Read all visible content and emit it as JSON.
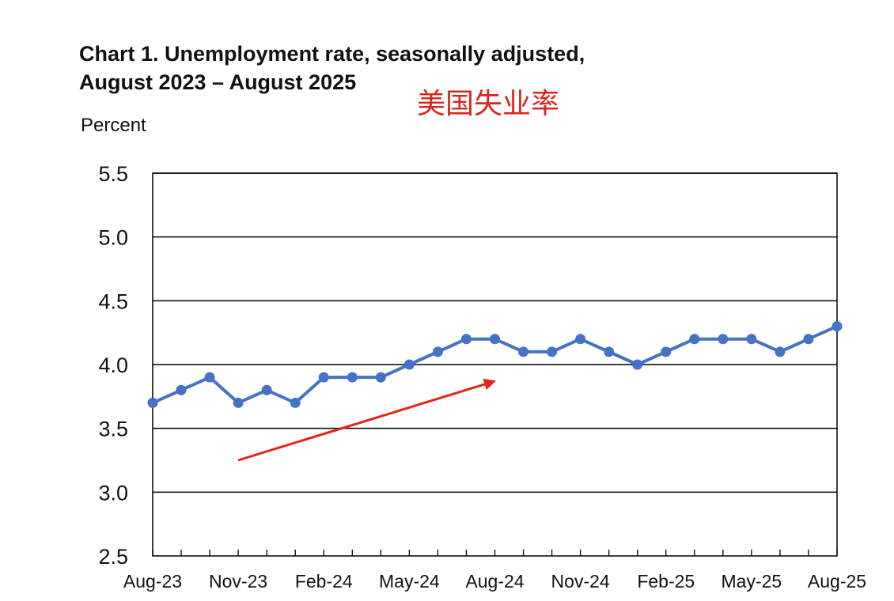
{
  "title_line1": "Chart 1. Unemployment rate, seasonally adjusted,",
  "title_line2": "August 2023 – August 2025",
  "annotation_text": "美国失业率",
  "annotation_color": "#d7261e",
  "colors": {
    "series": "#4472c4",
    "arrow": "#e3261b",
    "gridline": "#000000",
    "text": "#111111"
  },
  "chart_data": {
    "type": "line",
    "title": "Chart 1. Unemployment rate, seasonally adjusted, August 2023 – August 2025",
    "ylabel": "Percent",
    "xlabel": "",
    "ylim": [
      2.5,
      5.5
    ],
    "yticks": [
      "5.5",
      "5.0",
      "4.5",
      "4.0",
      "3.5",
      "3.0",
      "2.5"
    ],
    "yticks_values": [
      5.5,
      5.0,
      4.5,
      4.0,
      3.5,
      3.0,
      2.5
    ],
    "x": [
      "Aug-23",
      "Sep-23",
      "Oct-23",
      "Nov-23",
      "Dec-23",
      "Jan-24",
      "Feb-24",
      "Mar-24",
      "Apr-24",
      "May-24",
      "Jun-24",
      "Jul-24",
      "Aug-24",
      "Sep-24",
      "Oct-24",
      "Nov-24",
      "Dec-24",
      "Jan-25",
      "Feb-25",
      "Mar-25",
      "Apr-25",
      "May-25",
      "Jun-25",
      "Jul-25",
      "Aug-25"
    ],
    "xtick_labels": [
      "Aug-23",
      "Nov-23",
      "Feb-24",
      "May-24",
      "Aug-24",
      "Nov-24",
      "Feb-25",
      "May-25",
      "Aug-25"
    ],
    "series": [
      {
        "values": [
          3.7,
          3.8,
          3.9,
          3.7,
          3.8,
          3.7,
          3.9,
          3.9,
          3.9,
          4.0,
          4.1,
          4.2,
          4.2,
          4.1,
          4.1,
          4.2,
          4.1,
          4.0,
          4.1,
          4.2,
          4.2,
          4.2,
          4.1,
          4.2,
          4.3
        ]
      }
    ],
    "grid": true,
    "legend": "none",
    "annotation_arrow": {
      "from": [
        "Nov-23",
        3.25
      ],
      "to": [
        "Aug-24",
        3.87
      ]
    }
  }
}
